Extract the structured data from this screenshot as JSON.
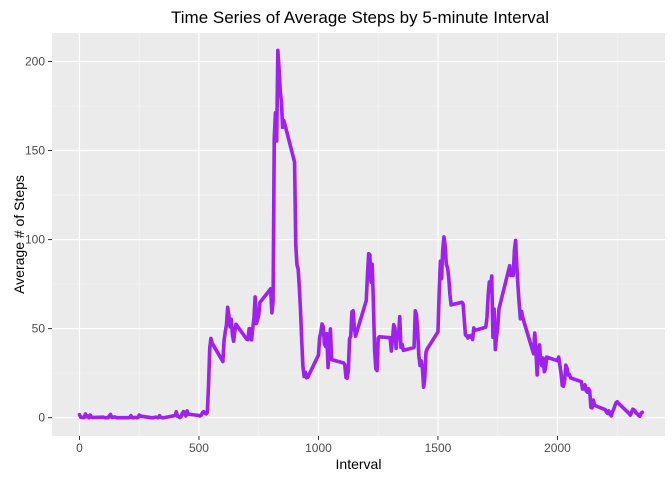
{
  "chart_data": {
    "type": "line",
    "title": "Time Series of Average Steps by 5-minute Interval",
    "xlabel": "Interval",
    "ylabel": "Average # of Steps",
    "xlim": [
      -115,
      2450
    ],
    "ylim": [
      -10.3,
      216
    ],
    "x_ticks": [
      0,
      500,
      1000,
      1500,
      2000
    ],
    "y_ticks": [
      0,
      50,
      100,
      150,
      200
    ],
    "grid": true,
    "legend": "none",
    "colors": {
      "line": "#a020f0",
      "panel": "#ebebeb",
      "grid_major": "#ffffff",
      "grid_minor": "#f5f5f5",
      "tick": "#333333"
    },
    "series": [
      {
        "x": [
          0,
          5,
          10,
          15,
          20,
          25,
          30,
          35,
          40,
          45,
          50,
          55,
          100,
          105,
          110,
          115,
          120,
          125,
          130,
          135,
          140,
          145,
          150,
          155,
          200,
          205,
          210,
          215,
          220,
          225,
          230,
          235,
          240,
          245,
          250,
          255,
          300,
          305,
          310,
          315,
          320,
          325,
          330,
          335,
          340,
          345,
          350,
          355,
          400,
          405,
          410,
          415,
          420,
          425,
          430,
          435,
          440,
          445,
          450,
          455,
          500,
          505,
          510,
          515,
          520,
          525,
          530,
          535,
          540,
          545,
          550,
          555,
          600,
          605,
          610,
          615,
          620,
          625,
          630,
          635,
          640,
          645,
          650,
          655,
          700,
          705,
          710,
          715,
          720,
          725,
          730,
          735,
          740,
          745,
          750,
          755,
          800,
          805,
          810,
          815,
          820,
          825,
          830,
          835,
          840,
          845,
          850,
          855,
          900,
          905,
          910,
          915,
          920,
          925,
          930,
          935,
          940,
          945,
          950,
          955,
          1000,
          1005,
          1010,
          1015,
          1020,
          1025,
          1030,
          1035,
          1040,
          1045,
          1050,
          1055,
          1100,
          1105,
          1110,
          1115,
          1120,
          1125,
          1130,
          1135,
          1140,
          1145,
          1150,
          1155,
          1200,
          1205,
          1210,
          1215,
          1220,
          1225,
          1230,
          1235,
          1240,
          1245,
          1250,
          1255,
          1300,
          1305,
          1310,
          1315,
          1320,
          1325,
          1330,
          1335,
          1340,
          1345,
          1350,
          1355,
          1400,
          1405,
          1410,
          1415,
          1420,
          1425,
          1430,
          1435,
          1440,
          1445,
          1450,
          1455,
          1500,
          1505,
          1510,
          1515,
          1520,
          1525,
          1530,
          1535,
          1540,
          1545,
          1550,
          1555,
          1600,
          1605,
          1610,
          1615,
          1620,
          1625,
          1630,
          1635,
          1640,
          1645,
          1650,
          1655,
          1700,
          1705,
          1710,
          1715,
          1720,
          1725,
          1730,
          1735,
          1740,
          1745,
          1750,
          1755,
          1800,
          1805,
          1810,
          1815,
          1820,
          1825,
          1830,
          1835,
          1840,
          1845,
          1850,
          1855,
          1900,
          1905,
          1910,
          1915,
          1920,
          1925,
          1930,
          1935,
          1940,
          1945,
          1950,
          1955,
          2000,
          2005,
          2010,
          2015,
          2020,
          2025,
          2030,
          2035,
          2040,
          2045,
          2050,
          2055,
          2100,
          2105,
          2110,
          2115,
          2120,
          2125,
          2130,
          2135,
          2140,
          2145,
          2150,
          2155,
          2200,
          2205,
          2210,
          2215,
          2220,
          2225,
          2230,
          2235,
          2240,
          2245,
          2250,
          2255,
          2300,
          2305,
          2310,
          2315,
          2320,
          2325,
          2330,
          2335,
          2340,
          2345,
          2350,
          2355
        ],
        "y": [
          1.7,
          0.3,
          0.1,
          0.2,
          0.1,
          2.1,
          0.5,
          0.9,
          0.0,
          1.5,
          0.3,
          0.1,
          0.3,
          0.0,
          0.0,
          0.0,
          0.0,
          1.1,
          1.8,
          0.2,
          0.2,
          0.4,
          0.3,
          0.0,
          0.0,
          0.0,
          0.0,
          1.1,
          0.0,
          0.0,
          0.0,
          0.2,
          0.0,
          0.0,
          1.5,
          0.9,
          0.0,
          0.0,
          0.0,
          0.2,
          0.3,
          0.0,
          0.0,
          1.1,
          0.2,
          0.0,
          0.0,
          0.0,
          1.2,
          3.3,
          0.8,
          0.7,
          0.0,
          0.6,
          2.3,
          3.4,
          2.1,
          1.0,
          3.8,
          2.0,
          1.2,
          1.0,
          1.5,
          2.9,
          3.4,
          2.7,
          2.1,
          3.0,
          18.3,
          39.0,
          44.5,
          41.8,
          31.5,
          43.4,
          48.2,
          52.1,
          62.0,
          57.4,
          51.0,
          55.2,
          46.4,
          42.9,
          48.5,
          52.4,
          44.0,
          43.8,
          50.0,
          49.8,
          43.7,
          50.3,
          55.8,
          67.8,
          52.8,
          55.0,
          57.8,
          64.7,
          72.4,
          58.9,
          65.0,
          157.1,
          171.2,
          155.4,
          206.2,
          196.2,
          183.4,
          177.3,
          163.0,
          166.9,
          143.5,
          96.9,
          85.8,
          83.4,
          73.0,
          59.7,
          42.9,
          28.6,
          23.1,
          25.5,
          22.4,
          22.6,
          35.2,
          45.1,
          48.0,
          52.6,
          50.9,
          41.4,
          40.0,
          47.1,
          28.1,
          39.5,
          49.8,
          32.6,
          30.9,
          30.7,
          29.8,
          22.6,
          22.1,
          26.8,
          44.1,
          45.8,
          59.4,
          60.0,
          50.4,
          45.7,
          65.7,
          80.4,
          92.1,
          91.5,
          76.1,
          86.1,
          63.4,
          37.5,
          27.4,
          26.4,
          44.6,
          45.4,
          44.9,
          37.4,
          44.7,
          52.2,
          50.3,
          38.9,
          47.0,
          45.7,
          56.7,
          39.5,
          41.2,
          37.8,
          39.4,
          60.0,
          57.8,
          48.8,
          34.7,
          29.3,
          31.9,
          27.6,
          17.1,
          22.6,
          36.9,
          38.6,
          48.2,
          69.9,
          87.8,
          78.1,
          94.3,
          101.5,
          96.6,
          86.1,
          84.2,
          78.7,
          69.2,
          63.3,
          64.8,
          63.9,
          55.0,
          46.4,
          46.0,
          44.7,
          45.9,
          45.3,
          46.1,
          43.9,
          50.4,
          49.0,
          50.8,
          56.0,
          68.7,
          76.2,
          73.4,
          79.5,
          45.1,
          61.0,
          38.2,
          45.7,
          50.5,
          60.9,
          85.3,
          79.8,
          81.5,
          79.8,
          94.2,
          99.5,
          84.9,
          73.4,
          63.7,
          55.5,
          59.7,
          56.0,
          35.9,
          47.5,
          37.4,
          24.0,
          36.3,
          40.8,
          30.9,
          29.2,
          33.5,
          25.8,
          27.5,
          34.0,
          32.0,
          34.0,
          29.6,
          25.0,
          18.1,
          17.6,
          20.9,
          29.5,
          27.8,
          24.0,
          24.2,
          22.3,
          20.2,
          16.0,
          17.7,
          18.4,
          15.1,
          14.3,
          16.2,
          14.9,
          5.7,
          5.5,
          9.9,
          6.9,
          4.5,
          3.1,
          2.4,
          3.8,
          1.8,
          1.0,
          3.3,
          4.6,
          6.6,
          8.4,
          8.9,
          8.1,
          2.3,
          1.4,
          3.0,
          4.7,
          4.4,
          3.7,
          2.5,
          2.0,
          1.2,
          0.8,
          2.6,
          3.0
        ]
      }
    ]
  }
}
